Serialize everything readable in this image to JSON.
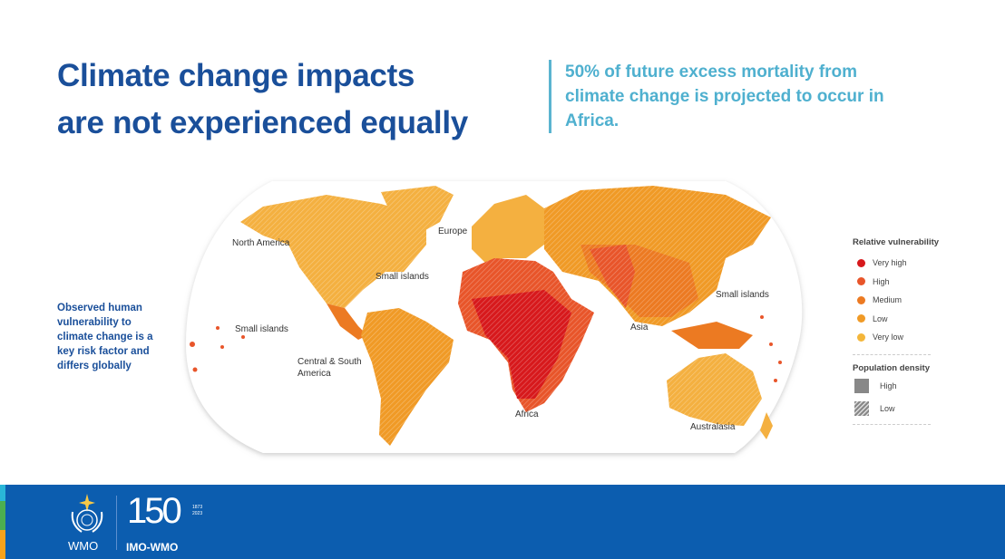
{
  "title": {
    "line1": "Climate change impacts",
    "line2": "are not experienced equally"
  },
  "quote": "50% of future excess mortality from climate change is projected to occur in Africa.",
  "side_note": "Observed human vulnerability to climate change is a key risk factor and differs globally",
  "map": {
    "regions": {
      "north_america": "North America",
      "europe": "Europe",
      "small_islands_atlantic": "Small islands",
      "small_islands_pacific": "Small islands",
      "small_islands_asia": "Small islands",
      "central_south_america": "Central & South America",
      "africa": "Africa",
      "asia": "Asia",
      "australasia": "Australasia"
    }
  },
  "legend": {
    "vulnerability_title": "Relative vulnerability",
    "vulnerability": [
      {
        "label": "Very high",
        "color": "#d7191c"
      },
      {
        "label": "High",
        "color": "#e8552a"
      },
      {
        "label": "Medium",
        "color": "#ec7a22"
      },
      {
        "label": "Low",
        "color": "#f09a26"
      },
      {
        "label": "Very low",
        "color": "#f4b63a"
      }
    ],
    "density_title": "Population density",
    "density": [
      {
        "label": "High",
        "pattern": "solid"
      },
      {
        "label": "Low",
        "pattern": "hatched"
      }
    ]
  },
  "footer": {
    "logo_text": "WMO",
    "anniversary_text": "IMO-WMO",
    "anniversary_number": "150",
    "years": "1873 2023",
    "background": "#0c5daf",
    "strip_colors": [
      "#29b6d8",
      "#4caf50",
      "#f7a21b"
    ]
  }
}
